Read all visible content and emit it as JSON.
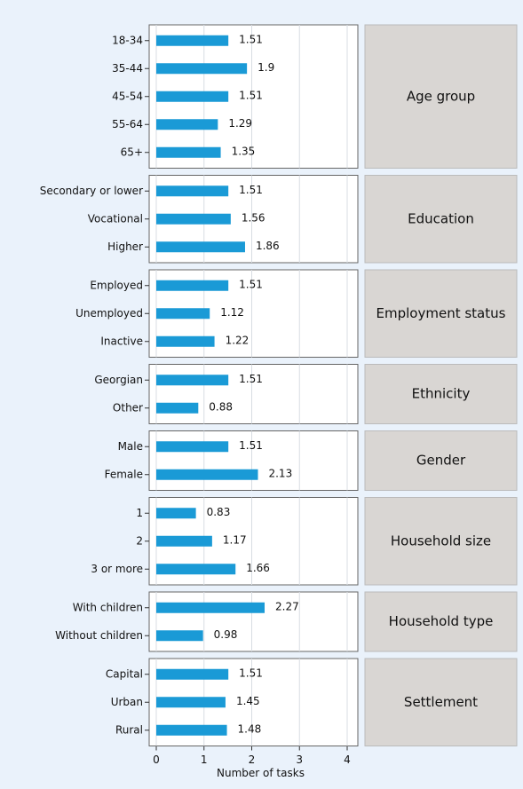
{
  "chart_data": {
    "type": "bar",
    "orientation": "horizontal",
    "color": "#1a9ad6",
    "xlim": [
      0,
      4
    ],
    "xticks": [
      0,
      1,
      2,
      3,
      4
    ],
    "xlabel": "Number of tasks",
    "grid": true,
    "panels": [
      {
        "title": "Age group",
        "categories": [
          "18-34",
          "35-44",
          "45-54",
          "55-64",
          "65+"
        ],
        "values": [
          1.51,
          1.9,
          1.51,
          1.29,
          1.35
        ]
      },
      {
        "title": "Education",
        "categories": [
          "Secondary or lower",
          "Vocational",
          "Higher"
        ],
        "values": [
          1.51,
          1.56,
          1.86
        ]
      },
      {
        "title": "Employment status",
        "categories": [
          "Employed",
          "Unemployed",
          "Inactive"
        ],
        "values": [
          1.51,
          1.12,
          1.22
        ]
      },
      {
        "title": "Ethnicity",
        "categories": [
          "Georgian",
          "Other"
        ],
        "values": [
          1.51,
          0.88
        ]
      },
      {
        "title": "Gender",
        "categories": [
          "Male",
          "Female"
        ],
        "values": [
          1.51,
          2.13
        ]
      },
      {
        "title": "Household size",
        "categories": [
          "1",
          "2",
          "3 or more"
        ],
        "values": [
          0.83,
          1.17,
          1.66
        ]
      },
      {
        "title": "Household type",
        "categories": [
          "With children",
          "Without children"
        ],
        "values": [
          2.27,
          0.98
        ]
      },
      {
        "title": "Settlement",
        "categories": [
          "Capital",
          "Urban",
          "Rural"
        ],
        "values": [
          1.51,
          1.45,
          1.48
        ]
      }
    ]
  }
}
